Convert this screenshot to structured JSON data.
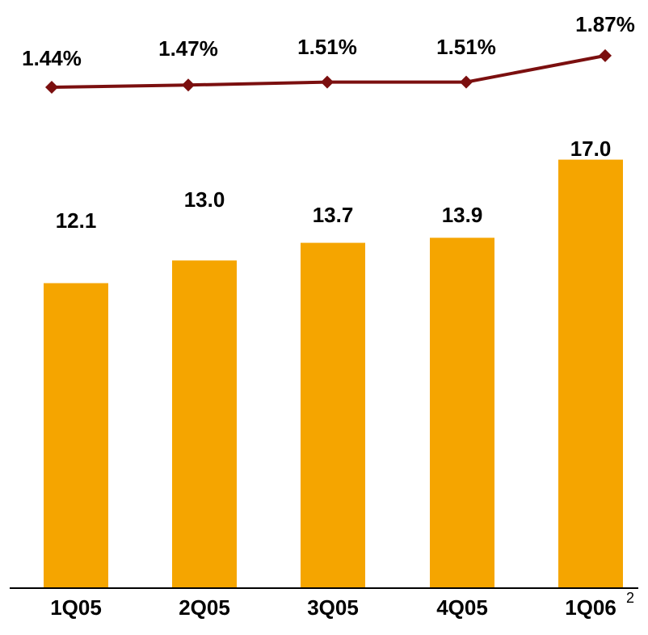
{
  "chart_data": {
    "type": "bar",
    "categories": [
      "1Q05",
      "2Q05",
      "3Q05",
      "4Q05",
      "1Q06"
    ],
    "category_footnote": {
      "index": 4,
      "marker": "2"
    },
    "series": [
      {
        "type": "bar",
        "values": [
          12.1,
          13.0,
          13.7,
          13.9,
          17.0
        ],
        "labels": [
          "12.1",
          "13.0",
          "13.7",
          "13.9",
          "17.0"
        ],
        "color": "#F5A500"
      },
      {
        "type": "line",
        "values": [
          1.44,
          1.47,
          1.51,
          1.51,
          1.87
        ],
        "labels": [
          "1.44%",
          "1.47%",
          "1.51%",
          "1.51%",
          "1.87%"
        ],
        "color": "#7B0F0F",
        "marker": "diamond"
      }
    ],
    "ylim": [
      0,
      24
    ],
    "line_ylim": [
      0,
      2.0
    ],
    "grid": false,
    "legend": "none"
  }
}
